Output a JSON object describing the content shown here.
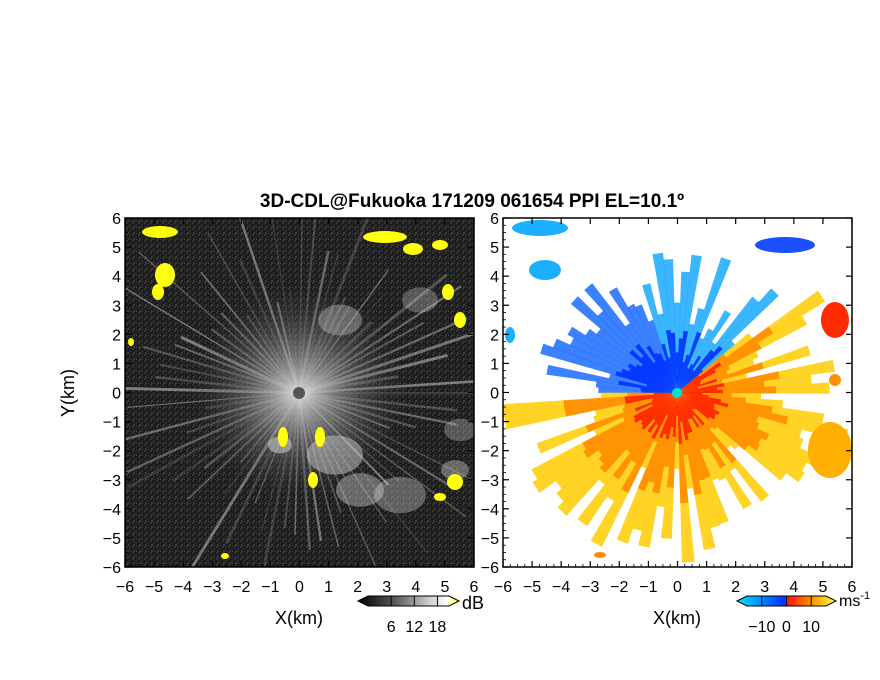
{
  "figure": {
    "title": "3D-CDL@Fukuoka 171209 061654 PPI EL=10.1º"
  },
  "chart_data": [
    {
      "type": "heatmap",
      "panel": "left",
      "description_key": "backscatter intensity PPI",
      "xlabel": "X(km)",
      "ylabel": "Y(km)",
      "xlim": [
        -6,
        6
      ],
      "ylim": [
        -6,
        6
      ],
      "x_ticks": [
        -6,
        -5,
        -4,
        -3,
        -2,
        -1,
        0,
        1,
        2,
        3,
        4,
        5,
        6
      ],
      "y_ticks": [
        -6,
        -5,
        -4,
        -3,
        -2,
        -1,
        0,
        1,
        2,
        3,
        4,
        5,
        6
      ],
      "colorbar": {
        "unit": "dB",
        "ticks": [
          6,
          12,
          18
        ],
        "colors": [
          "#000000",
          "#555555",
          "#aaaaaa",
          "#ffffff",
          "#ffff00"
        ]
      }
    },
    {
      "type": "heatmap",
      "panel": "right",
      "description_key": "Doppler radial velocity PPI",
      "xlabel": "X(km)",
      "xlim": [
        -6,
        6
      ],
      "ylim": [
        -6,
        6
      ],
      "x_ticks": [
        -6,
        -5,
        -4,
        -3,
        -2,
        -1,
        0,
        1,
        2,
        3,
        4,
        5,
        6
      ],
      "y_ticks": [
        -6,
        -5,
        -4,
        -3,
        -2,
        -1,
        0,
        1,
        2,
        3,
        4,
        5,
        6
      ],
      "colorbar": {
        "unit": "ms",
        "unit_exp": "-1",
        "ticks": [
          -10,
          0,
          10
        ],
        "colors": [
          "#00e5ff",
          "#009fff",
          "#0040ff",
          "#ff1a00",
          "#ff8c00",
          "#ffd000",
          "#ffff40"
        ]
      }
    }
  ]
}
